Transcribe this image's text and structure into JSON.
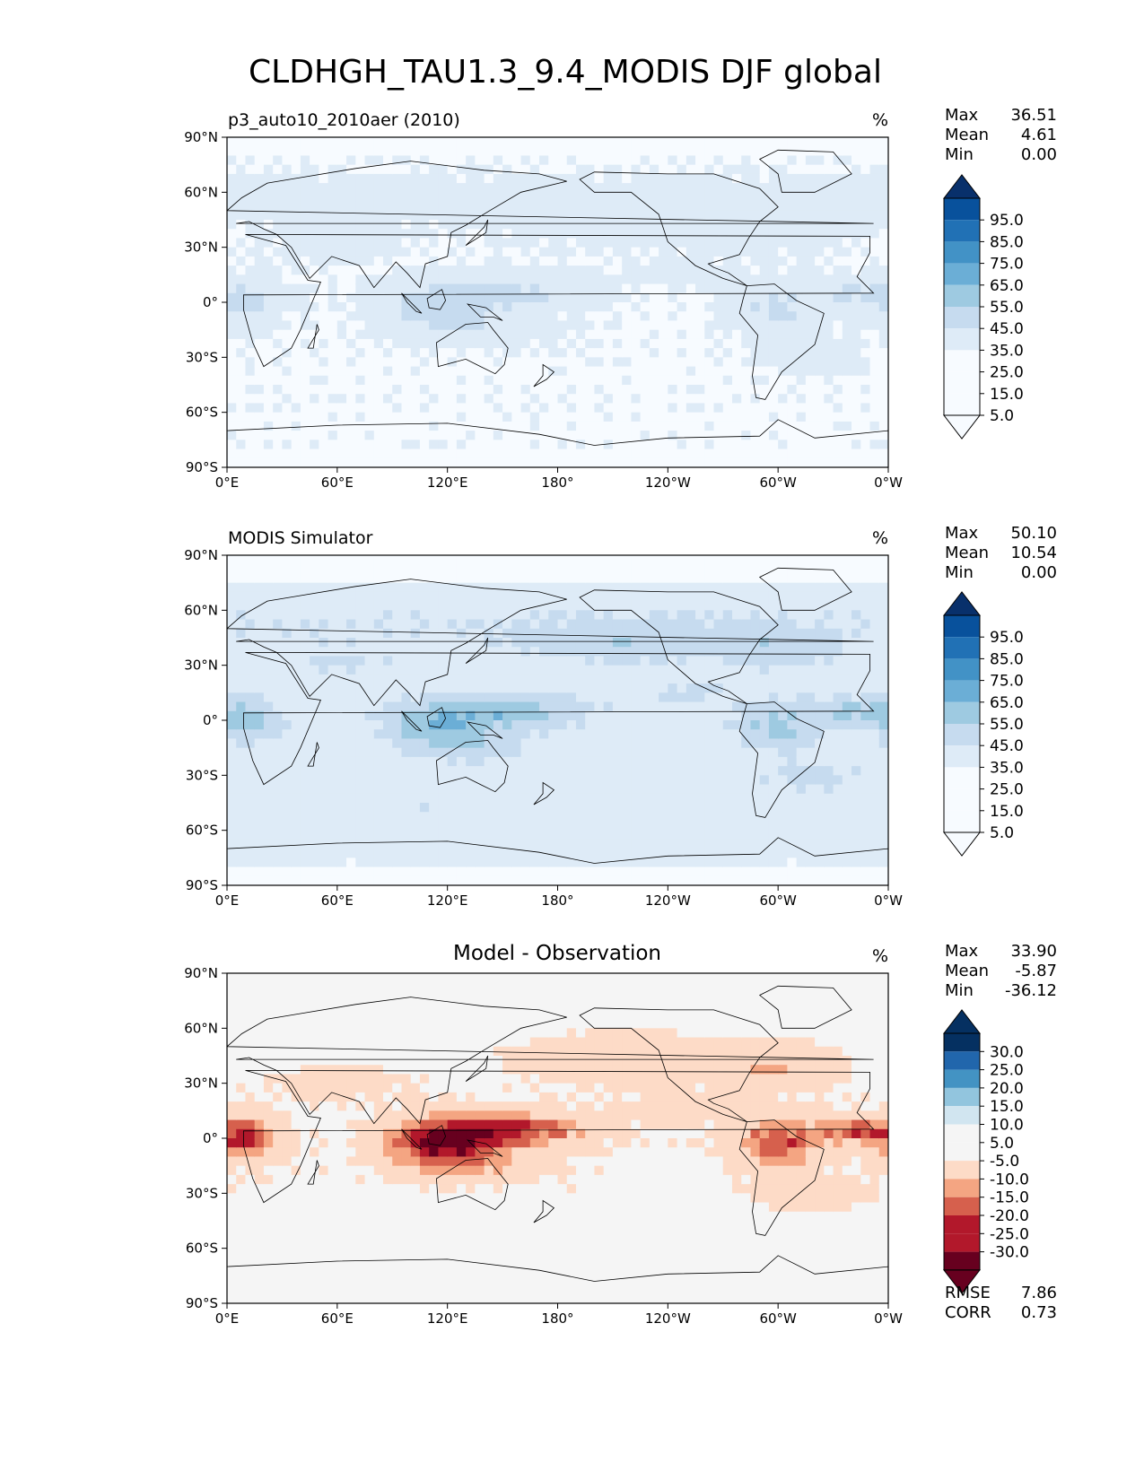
{
  "figure": {
    "title": "CLDHGH_TAU1.3_9.4_MODIS DJF global"
  },
  "axis_labels": {
    "x": [
      "0°E",
      "60°E",
      "120°E",
      "180°",
      "120°W",
      "60°W",
      "0°W"
    ],
    "y": [
      "90°N",
      "60°N",
      "30°N",
      "0°",
      "30°S",
      "60°S",
      "90°S"
    ]
  },
  "colors": {
    "blues": [
      "#f7fbff",
      "#deebf7",
      "#c6dbef",
      "#9ecae1",
      "#6baed6",
      "#4292c6",
      "#2171b5",
      "#08519c",
      "#08306b"
    ],
    "diff": [
      "#67001f",
      "#b2182b",
      "#d6604d",
      "#f4a582",
      "#fddbc7",
      "#f5f5f5",
      "#d1e5f0",
      "#92c5de",
      "#4393c3",
      "#2166ac",
      "#053061"
    ]
  },
  "chart_data": [
    {
      "type": "heatmap",
      "title": "p3_auto10_2010aer (2010)",
      "units": "%",
      "map_kind": "model",
      "stats": {
        "max_label": "Max",
        "max": "36.51",
        "mean_label": "Mean",
        "mean": "4.61",
        "min_label": "Min",
        "min": "0.00"
      },
      "colorbar": {
        "levels": [
          "95.0",
          "85.0",
          "75.0",
          "65.0",
          "55.0",
          "45.0",
          "35.0",
          "25.0",
          "15.0",
          "5.0"
        ]
      }
    },
    {
      "type": "heatmap",
      "title": "MODIS Simulator",
      "units": "%",
      "map_kind": "obs",
      "stats": {
        "max_label": "Max",
        "max": "50.10",
        "mean_label": "Mean",
        "mean": "10.54",
        "min_label": "Min",
        "min": "0.00"
      },
      "colorbar": {
        "levels": [
          "95.0",
          "85.0",
          "75.0",
          "65.0",
          "55.0",
          "45.0",
          "35.0",
          "25.0",
          "15.0",
          "5.0"
        ]
      }
    },
    {
      "type": "heatmap",
      "title": "Model - Observation",
      "units": "%",
      "map_kind": "diff",
      "stats": {
        "max_label": "Max",
        "max": "33.90",
        "mean_label": "Mean",
        "mean": "-5.87",
        "min_label": "Min",
        "min": "-36.12"
      },
      "colorbar": {
        "levels": [
          "30.0",
          "25.0",
          "20.0",
          "15.0",
          "10.0",
          "5.0",
          "-5.0",
          "-10.0",
          "-15.0",
          "-20.0",
          "-25.0",
          "-30.0"
        ]
      },
      "metrics": {
        "rmse_label": "RMSE",
        "rmse": "7.86",
        "corr_label": "CORR",
        "corr": "0.73"
      }
    }
  ]
}
